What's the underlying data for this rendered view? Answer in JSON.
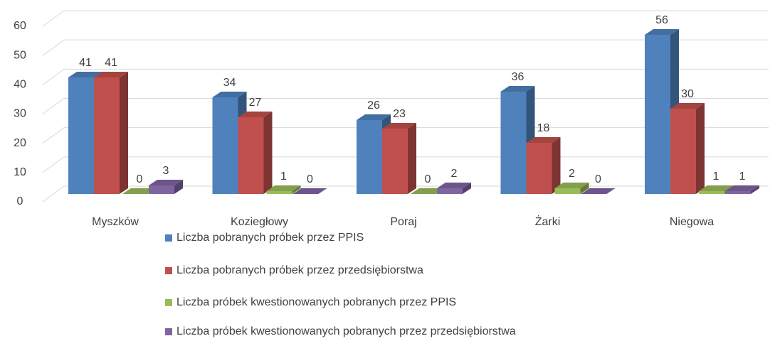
{
  "chart_data": {
    "type": "bar",
    "three_d": true,
    "categories": [
      "Myszków",
      "Koziegłowy",
      "Poraj",
      "Żarki",
      "Niegowa"
    ],
    "series": [
      {
        "name": "Liczba pobranych próbek przez PPIS",
        "color": "#4f81bd",
        "values": [
          41,
          34,
          26,
          36,
          56
        ]
      },
      {
        "name": "Liczba pobranych próbek przez przedsiębiorstwa",
        "color": "#c0504d",
        "values": [
          41,
          27,
          23,
          18,
          30
        ]
      },
      {
        "name": "Liczba próbek kwestionowanych pobranych przez PPIS",
        "color": "#9bbb59",
        "values": [
          0,
          1,
          0,
          2,
          1
        ]
      },
      {
        "name": "Liczba próbek kwestionowanych pobranych przez przedsiębiorstwa",
        "color": "#8064a2",
        "values": [
          3,
          0,
          2,
          0,
          1
        ]
      }
    ],
    "ylim": [
      0,
      60
    ],
    "yticks": [
      0,
      10,
      20,
      30,
      40,
      50,
      60
    ],
    "grid": true,
    "legend": "bottom"
  }
}
